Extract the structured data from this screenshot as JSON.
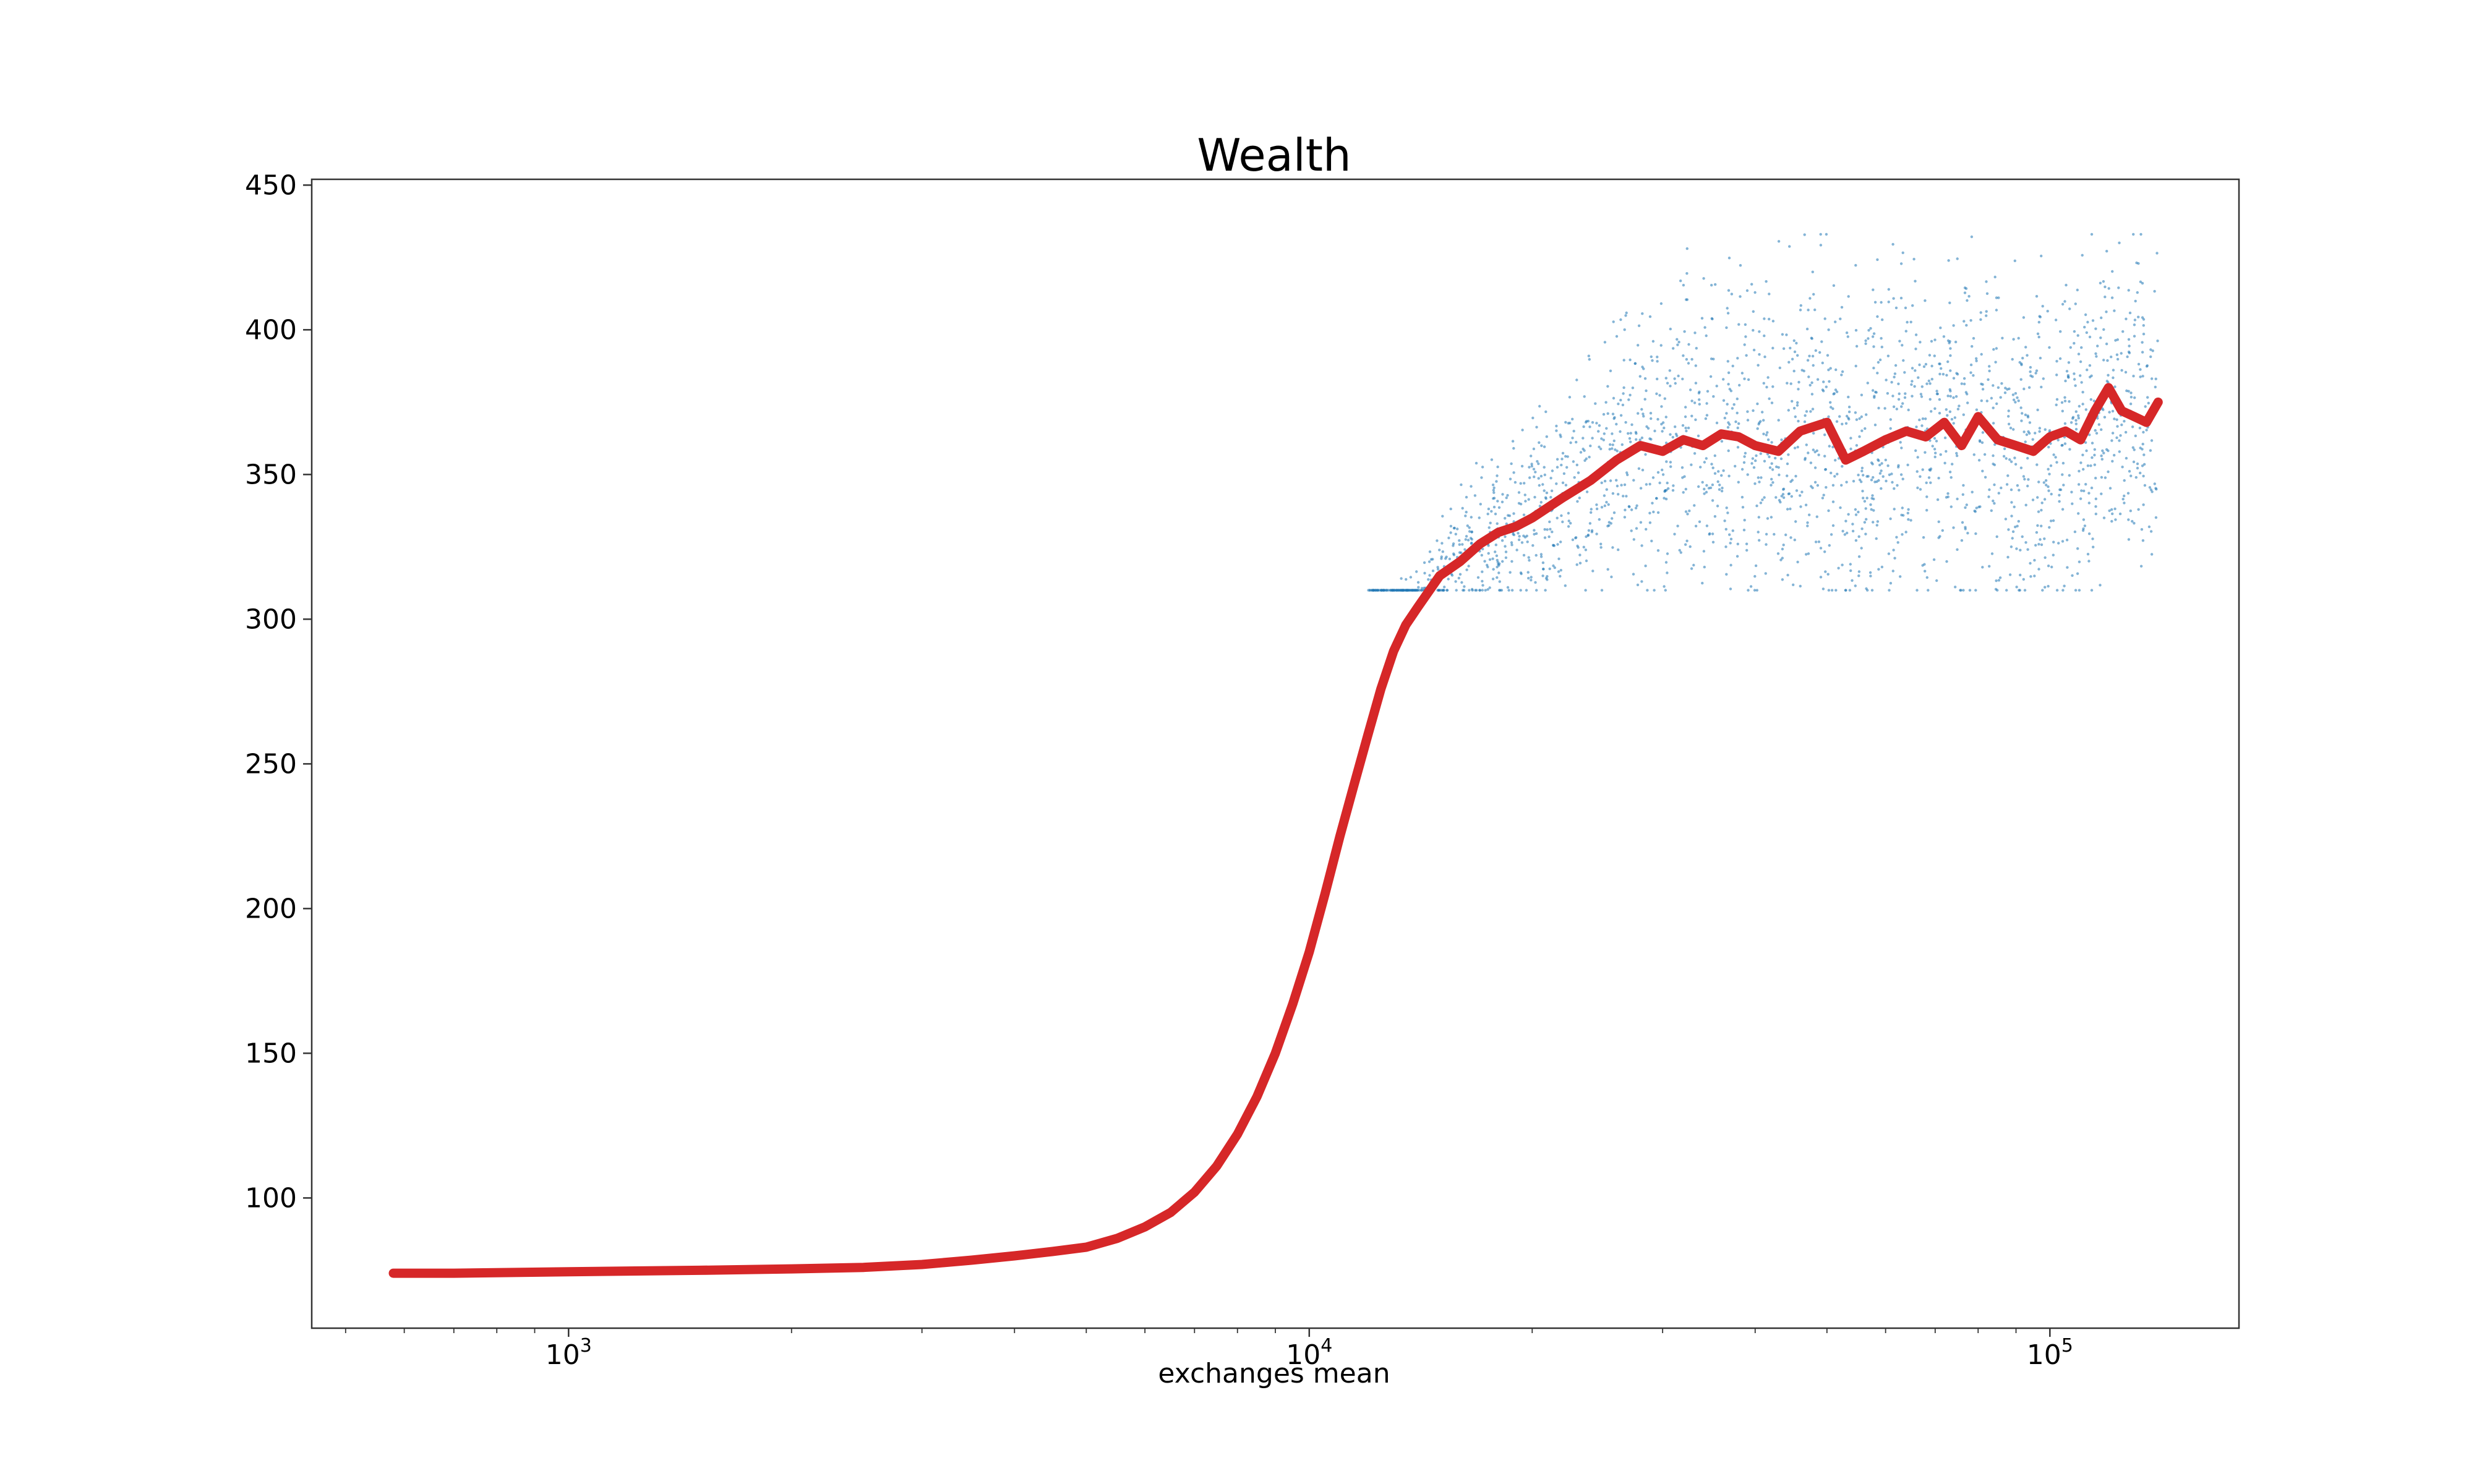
{
  "chart_data": {
    "type": "line",
    "title": "Wealth",
    "xlabel": "exchanges mean",
    "ylabel": "",
    "x_scale": "log",
    "xlim": [
      450,
      180000
    ],
    "ylim": [
      55,
      452
    ],
    "x_ticks": [
      {
        "value": 1000,
        "base": "10",
        "exp": "3"
      },
      {
        "value": 10000,
        "base": "10",
        "exp": "4"
      },
      {
        "value": 100000,
        "base": "10",
        "exp": "5"
      }
    ],
    "y_ticks": [
      100,
      150,
      200,
      250,
      300,
      350,
      400,
      450
    ],
    "grid": false,
    "legend": "none",
    "colors": {
      "line": "#d62728",
      "scatter": "#1f77b4"
    },
    "series": [
      {
        "kind": "line",
        "x": [
          580,
          700,
          1000,
          1500,
          2000,
          2500,
          3000,
          3500,
          4000,
          4500,
          5000,
          5500,
          6000,
          6500,
          7000,
          7500,
          8000,
          8500,
          9000,
          9500,
          10000,
          10500,
          11000,
          11500,
          12000,
          12500,
          13000,
          13500,
          14000,
          15000,
          16000,
          17000,
          18000,
          19000,
          20000,
          22000,
          24000,
          26000,
          28000,
          30000,
          32000,
          34000,
          36000,
          38000,
          40000,
          43000,
          46000,
          50000,
          53000,
          56000,
          60000,
          64000,
          68000,
          72000,
          76000,
          80000,
          85000,
          90000,
          95000,
          100000,
          105000,
          110000,
          115000,
          120000,
          125000,
          130000,
          135000,
          140000
        ],
        "y": [
          74,
          74,
          74.5,
          75,
          75.5,
          76,
          77,
          78.5,
          80,
          81.5,
          83,
          86,
          90,
          95,
          102,
          111,
          122,
          135,
          150,
          167,
          185,
          205,
          225,
          243,
          260,
          276,
          289,
          298,
          304,
          315,
          320,
          326,
          330,
          332,
          335,
          342,
          348,
          355,
          360,
          358,
          362,
          360,
          364,
          363,
          360,
          358,
          365,
          368,
          355,
          358,
          362,
          365,
          363,
          368,
          360,
          370,
          362,
          360,
          358,
          363,
          365,
          362,
          372,
          380,
          372,
          370,
          368,
          375
        ]
      },
      {
        "kind": "scatter",
        "description": "scattered sample points around the mean",
        "x_range": [
          12000,
          140000
        ],
        "y_range": [
          300,
          433
        ]
      }
    ]
  }
}
